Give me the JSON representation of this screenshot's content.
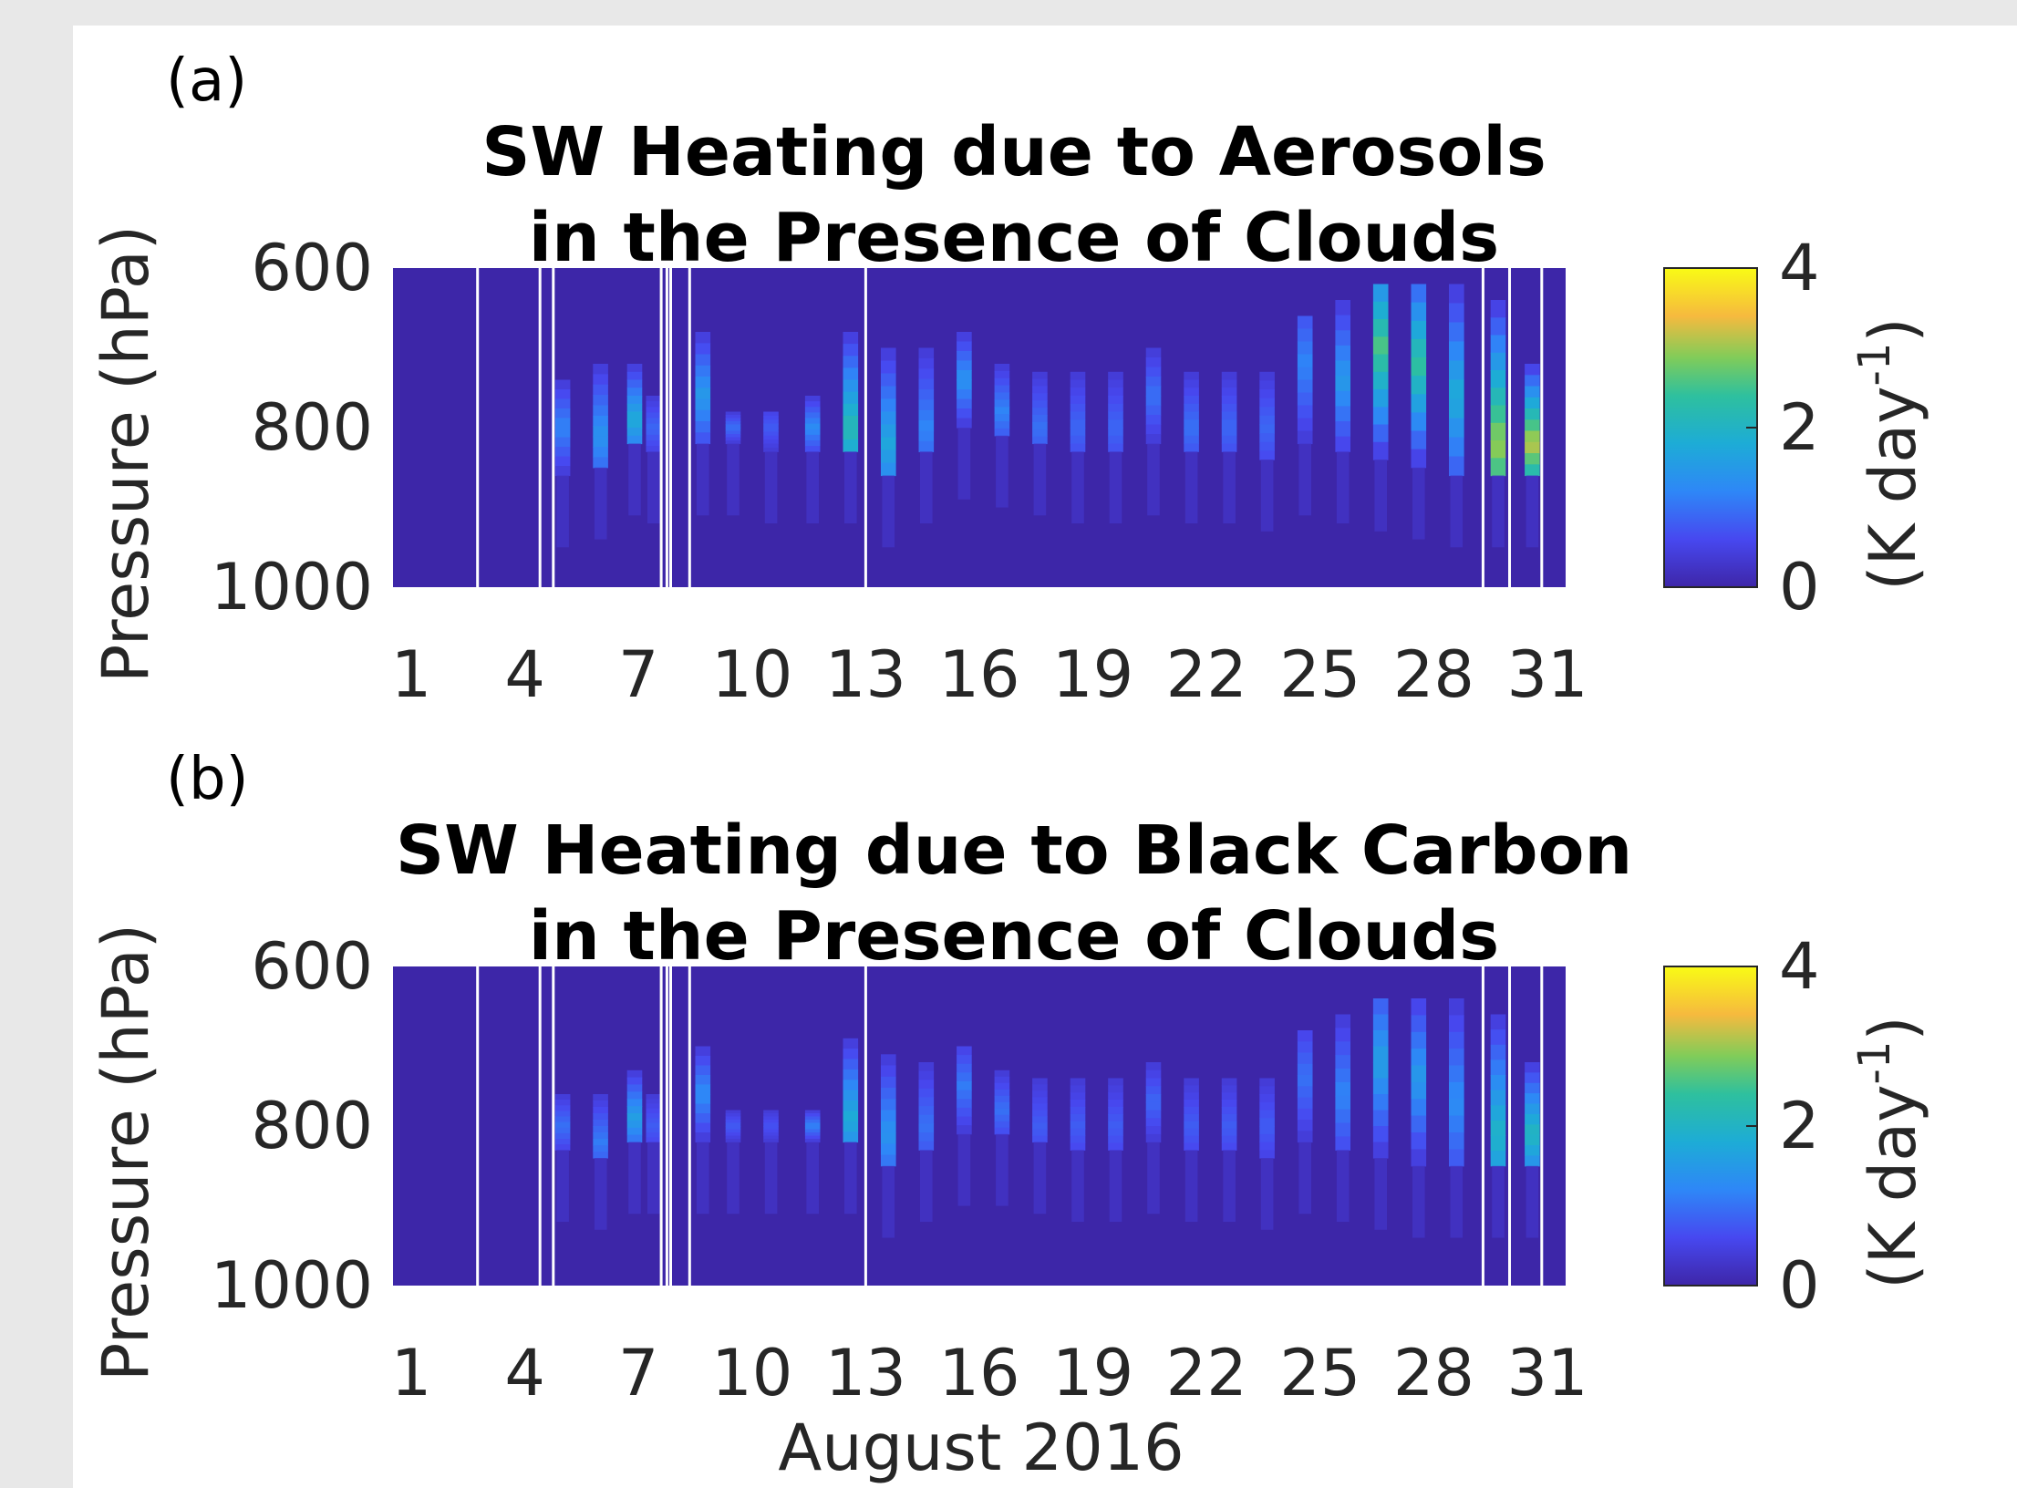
{
  "chart_data": [
    {
      "type": "heatmap",
      "panel_label": "(a)",
      "title_lines": [
        "SW Heating due to Aerosols",
        "in the Presence of Clouds"
      ],
      "ylabel": "Pressure (hPa)",
      "xlabel": "",
      "x_ticks": [
        "1",
        "4",
        "7",
        "10",
        "13",
        "16",
        "19",
        "22",
        "25",
        "28",
        "31"
      ],
      "y_ticks": [
        "600",
        "800",
        "1000"
      ],
      "xlim": [
        1,
        31
      ],
      "ylim": [
        600,
        1000
      ],
      "colorbar": {
        "ticks": [
          "0",
          "2",
          "4"
        ],
        "range": [
          0,
          4
        ],
        "label_main": "(K day",
        "label_sup": "-1",
        "label_end": ")"
      },
      "background_color": "#3d26a8",
      "gap_days": [
        2.75,
        4.4,
        4.75,
        7.6,
        7.75,
        7.85,
        8.35,
        13.0,
        29.3,
        30.0,
        30.85
      ],
      "columns": [
        {
          "day": 5.0,
          "p_top": 740,
          "p_bot": 860,
          "peak_p": 800,
          "peak": 1.2
        },
        {
          "day": 6.0,
          "p_top": 720,
          "p_bot": 850,
          "peak_p": 810,
          "peak": 1.4
        },
        {
          "day": 6.9,
          "p_top": 720,
          "p_bot": 820,
          "peak_p": 790,
          "peak": 1.8
        },
        {
          "day": 7.4,
          "p_top": 760,
          "p_bot": 830,
          "peak_p": 800,
          "peak": 0.9
        },
        {
          "day": 8.7,
          "p_top": 680,
          "p_bot": 820,
          "peak_p": 760,
          "peak": 1.5
        },
        {
          "day": 9.5,
          "p_top": 780,
          "p_bot": 820,
          "peak_p": 800,
          "peak": 1.0
        },
        {
          "day": 10.5,
          "p_top": 780,
          "p_bot": 830,
          "peak_p": 800,
          "peak": 0.8
        },
        {
          "day": 11.6,
          "p_top": 760,
          "p_bot": 830,
          "peak_p": 800,
          "peak": 1.3
        },
        {
          "day": 12.6,
          "p_top": 680,
          "p_bot": 830,
          "peak_p": 800,
          "peak": 2.2
        },
        {
          "day": 13.6,
          "p_top": 700,
          "p_bot": 860,
          "peak_p": 820,
          "peak": 1.7
        },
        {
          "day": 14.6,
          "p_top": 700,
          "p_bot": 830,
          "peak_p": 800,
          "peak": 1.2
        },
        {
          "day": 15.6,
          "p_top": 680,
          "p_bot": 800,
          "peak_p": 740,
          "peak": 1.4
        },
        {
          "day": 16.6,
          "p_top": 720,
          "p_bot": 810,
          "peak_p": 780,
          "peak": 1.2
        },
        {
          "day": 17.6,
          "p_top": 730,
          "p_bot": 820,
          "peak_p": 800,
          "peak": 1.0
        },
        {
          "day": 18.6,
          "p_top": 730,
          "p_bot": 830,
          "peak_p": 800,
          "peak": 0.9
        },
        {
          "day": 19.6,
          "p_top": 730,
          "p_bot": 830,
          "peak_p": 800,
          "peak": 0.9
        },
        {
          "day": 20.6,
          "p_top": 700,
          "p_bot": 820,
          "peak_p": 760,
          "peak": 1.0
        },
        {
          "day": 21.6,
          "p_top": 730,
          "p_bot": 830,
          "peak_p": 800,
          "peak": 1.0
        },
        {
          "day": 22.6,
          "p_top": 730,
          "p_bot": 830,
          "peak_p": 800,
          "peak": 0.9
        },
        {
          "day": 23.6,
          "p_top": 730,
          "p_bot": 840,
          "peak_p": 800,
          "peak": 0.9
        },
        {
          "day": 24.6,
          "p_top": 660,
          "p_bot": 820,
          "peak_p": 720,
          "peak": 1.2
        },
        {
          "day": 25.6,
          "p_top": 640,
          "p_bot": 830,
          "peak_p": 740,
          "peak": 1.5
        },
        {
          "day": 26.6,
          "p_top": 620,
          "p_bot": 840,
          "peak_p": 700,
          "peak": 2.6
        },
        {
          "day": 27.6,
          "p_top": 620,
          "p_bot": 850,
          "peak_p": 720,
          "peak": 2.4
        },
        {
          "day": 28.6,
          "p_top": 620,
          "p_bot": 860,
          "peak_p": 760,
          "peak": 1.8
        },
        {
          "day": 29.7,
          "p_top": 640,
          "p_bot": 860,
          "peak_p": 820,
          "peak": 3.0
        },
        {
          "day": 30.6,
          "p_top": 720,
          "p_bot": 860,
          "peak_p": 820,
          "peak": 3.2
        }
      ]
    },
    {
      "type": "heatmap",
      "panel_label": "(b)",
      "title_lines": [
        "SW Heating due to Black Carbon",
        "in the Presence of Clouds"
      ],
      "ylabel": "Pressure (hPa)",
      "xlabel": "August 2016",
      "x_ticks": [
        "1",
        "4",
        "7",
        "10",
        "13",
        "16",
        "19",
        "22",
        "25",
        "28",
        "31"
      ],
      "y_ticks": [
        "600",
        "800",
        "1000"
      ],
      "xlim": [
        1,
        31
      ],
      "ylim": [
        600,
        1000
      ],
      "colorbar": {
        "ticks": [
          "0",
          "2",
          "4"
        ],
        "range": [
          0,
          4
        ],
        "label_main": "(K day",
        "label_sup": "-1",
        "label_end": ")"
      },
      "background_color": "#3d26a8",
      "gap_days": [
        2.75,
        4.4,
        4.75,
        7.6,
        7.75,
        7.85,
        8.35,
        13.0,
        29.3,
        30.0,
        30.85
      ],
      "columns": [
        {
          "day": 5.0,
          "p_top": 760,
          "p_bot": 830,
          "peak_p": 800,
          "peak": 1.0
        },
        {
          "day": 6.0,
          "p_top": 760,
          "p_bot": 840,
          "peak_p": 820,
          "peak": 1.1
        },
        {
          "day": 6.9,
          "p_top": 730,
          "p_bot": 820,
          "peak_p": 790,
          "peak": 1.6
        },
        {
          "day": 7.4,
          "p_top": 760,
          "p_bot": 820,
          "peak_p": 800,
          "peak": 0.8
        },
        {
          "day": 8.7,
          "p_top": 700,
          "p_bot": 820,
          "peak_p": 760,
          "peak": 1.3
        },
        {
          "day": 9.5,
          "p_top": 780,
          "p_bot": 820,
          "peak_p": 800,
          "peak": 0.8
        },
        {
          "day": 10.5,
          "p_top": 780,
          "p_bot": 820,
          "peak_p": 800,
          "peak": 0.7
        },
        {
          "day": 11.6,
          "p_top": 780,
          "p_bot": 820,
          "peak_p": 800,
          "peak": 1.2
        },
        {
          "day": 12.6,
          "p_top": 690,
          "p_bot": 820,
          "peak_p": 790,
          "peak": 1.8
        },
        {
          "day": 13.6,
          "p_top": 710,
          "p_bot": 850,
          "peak_p": 810,
          "peak": 1.4
        },
        {
          "day": 14.6,
          "p_top": 720,
          "p_bot": 830,
          "peak_p": 800,
          "peak": 1.0
        },
        {
          "day": 15.6,
          "p_top": 700,
          "p_bot": 810,
          "peak_p": 750,
          "peak": 1.1
        },
        {
          "day": 16.6,
          "p_top": 730,
          "p_bot": 810,
          "peak_p": 780,
          "peak": 1.0
        },
        {
          "day": 17.6,
          "p_top": 740,
          "p_bot": 820,
          "peak_p": 800,
          "peak": 0.8
        },
        {
          "day": 18.6,
          "p_top": 740,
          "p_bot": 830,
          "peak_p": 800,
          "peak": 0.8
        },
        {
          "day": 19.6,
          "p_top": 740,
          "p_bot": 830,
          "peak_p": 800,
          "peak": 0.8
        },
        {
          "day": 20.6,
          "p_top": 720,
          "p_bot": 820,
          "peak_p": 770,
          "peak": 0.9
        },
        {
          "day": 21.6,
          "p_top": 740,
          "p_bot": 830,
          "peak_p": 800,
          "peak": 0.8
        },
        {
          "day": 22.6,
          "p_top": 740,
          "p_bot": 830,
          "peak_p": 800,
          "peak": 0.8
        },
        {
          "day": 23.6,
          "p_top": 740,
          "p_bot": 840,
          "peak_p": 800,
          "peak": 0.8
        },
        {
          "day": 24.6,
          "p_top": 680,
          "p_bot": 820,
          "peak_p": 740,
          "peak": 1.0
        },
        {
          "day": 25.6,
          "p_top": 660,
          "p_bot": 830,
          "peak_p": 760,
          "peak": 1.2
        },
        {
          "day": 26.6,
          "p_top": 640,
          "p_bot": 840,
          "peak_p": 720,
          "peak": 1.6
        },
        {
          "day": 27.6,
          "p_top": 640,
          "p_bot": 850,
          "peak_p": 740,
          "peak": 1.5
        },
        {
          "day": 28.6,
          "p_top": 640,
          "p_bot": 850,
          "peak_p": 770,
          "peak": 1.3
        },
        {
          "day": 29.7,
          "p_top": 660,
          "p_bot": 850,
          "peak_p": 810,
          "peak": 2.0
        },
        {
          "day": 30.6,
          "p_top": 720,
          "p_bot": 850,
          "peak_p": 810,
          "peak": 2.1
        }
      ]
    }
  ]
}
